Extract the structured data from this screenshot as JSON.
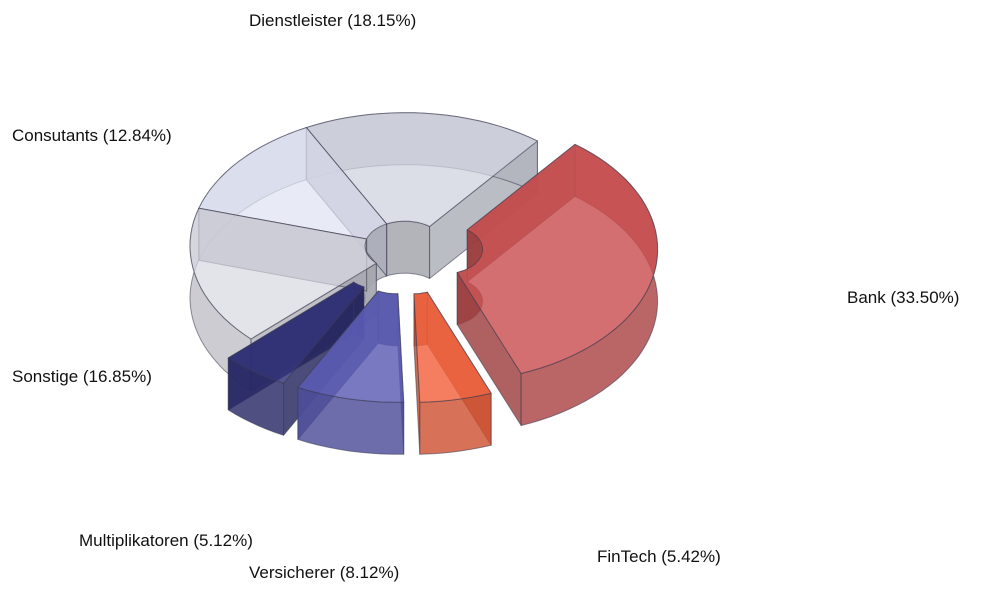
{
  "chart_data": {
    "type": "pie",
    "variant": "3d-exploded-donut",
    "title": "",
    "slices": [
      {
        "label": "Bank (33.50%)",
        "name": "Bank",
        "value": 33.5,
        "color": "#c94f50",
        "exploded": true
      },
      {
        "label": "FinTech (5.42%)",
        "name": "FinTech",
        "value": 5.42,
        "color": "#f2613c",
        "exploded": true
      },
      {
        "label": "Versicherer (8.12%)",
        "name": "Versicherer",
        "value": 8.12,
        "color": "#5b5bb5",
        "exploded": true
      },
      {
        "label": "Multiplikatoren (5.12%)",
        "name": "Multiplikatoren",
        "value": 5.12,
        "color": "#2f2f78",
        "exploded": true
      },
      {
        "label": "Sonstige (16.85%)",
        "name": "Sonstige",
        "value": 16.85,
        "color": "#d8d8e2",
        "exploded": false
      },
      {
        "label": "Consutants (12.84%)",
        "name": "Consutants",
        "value": 12.84,
        "color": "#dfe2f2",
        "exploded": false
      },
      {
        "label": "Dienstleister (18.15%)",
        "name": "Dienstleister",
        "value": 18.15,
        "color": "#cfd1de",
        "exploded": false
      }
    ]
  }
}
